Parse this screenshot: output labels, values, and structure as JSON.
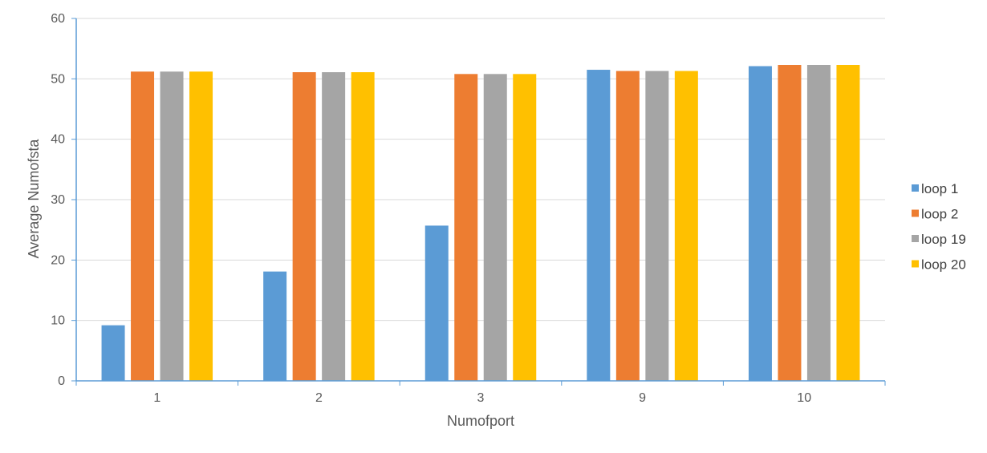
{
  "chart_data": {
    "type": "bar",
    "title": "",
    "xlabel": "Numofport",
    "ylabel": "Average Numofsta",
    "categories": [
      "1",
      "2",
      "3",
      "9",
      "10"
    ],
    "ylim": [
      0,
      60
    ],
    "yticks": [
      0,
      10,
      20,
      30,
      40,
      50,
      60
    ],
    "grid": true,
    "legend_position": "right",
    "series": [
      {
        "name": "loop 1",
        "color": "#5B9BD5",
        "values": [
          9.2,
          18.1,
          25.7,
          51.5,
          52.1
        ]
      },
      {
        "name": "loop 2",
        "color": "#ED7D31",
        "values": [
          51.2,
          51.1,
          50.8,
          51.3,
          52.3
        ]
      },
      {
        "name": "loop 19",
        "color": "#A5A5A5",
        "values": [
          51.2,
          51.1,
          50.8,
          51.3,
          52.3
        ]
      },
      {
        "name": "loop 20",
        "color": "#FFC000",
        "values": [
          51.2,
          51.1,
          50.8,
          51.3,
          52.3
        ]
      }
    ],
    "colors": {
      "axis": "#5B9BD5",
      "grid": "#D9D9D9",
      "text": "#595959"
    }
  }
}
